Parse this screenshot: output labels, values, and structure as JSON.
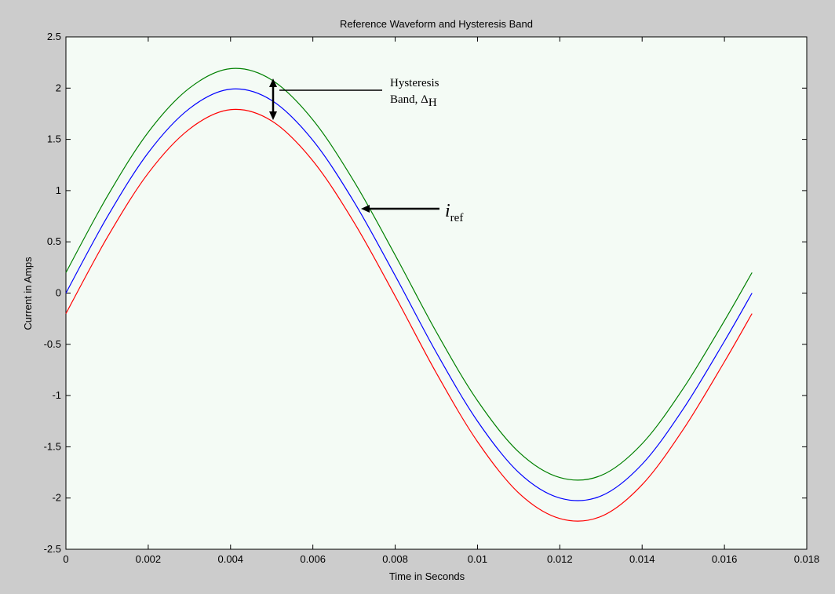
{
  "chart_data": {
    "type": "line",
    "title": "Reference Waveform and Hysteresis Band",
    "xlabel": "Time in Seconds",
    "ylabel": "Current in Amps",
    "xlim": [
      0,
      0.018
    ],
    "ylim": [
      -2.5,
      2.5
    ],
    "xticks": [
      "0",
      "0.002",
      "0.004",
      "0.006",
      "0.008",
      "0.01",
      "0.012",
      "0.014",
      "0.016",
      "0.018"
    ],
    "xtick_values": [
      0,
      0.002,
      0.004,
      0.006,
      0.008,
      0.01,
      0.012,
      0.014,
      0.016,
      0.018
    ],
    "yticks": [
      "2.5",
      "2",
      "1.5",
      "1",
      "0.5",
      "0",
      "-0.5",
      "-1",
      "-1.5",
      "-2",
      "-2.5"
    ],
    "ytick_values": [
      2.5,
      2,
      1.5,
      1,
      0.5,
      0,
      -0.5,
      -1,
      -1.5,
      -2,
      -2.5
    ],
    "grid": false,
    "series": [
      {
        "color": "#008000",
        "x": [
          0,
          0.001,
          0.002,
          0.003,
          0.004,
          0.005,
          0.006,
          0.007,
          0.008,
          0.009,
          0.01,
          0.011,
          0.012,
          0.013,
          0.014,
          0.015,
          0.016,
          0.01667
        ],
        "y": [
          0.2,
          0.94,
          1.57,
          2.0,
          2.19,
          2.08,
          1.69,
          1.09,
          0.37,
          -0.38,
          -1.05,
          -1.55,
          -1.8,
          -1.78,
          -1.47,
          -0.93,
          -0.27,
          0.2
        ]
      },
      {
        "color": "#0000ff",
        "x": [
          0,
          0.001,
          0.002,
          0.003,
          0.004,
          0.005,
          0.006,
          0.007,
          0.008,
          0.009,
          0.01,
          0.011,
          0.012,
          0.013,
          0.014,
          0.015,
          0.016,
          0.01667
        ],
        "y": [
          0.0,
          0.74,
          1.37,
          1.8,
          1.99,
          1.88,
          1.49,
          0.89,
          0.17,
          -0.58,
          -1.25,
          -1.75,
          -2.0,
          -1.98,
          -1.67,
          -1.13,
          -0.47,
          0.0
        ]
      },
      {
        "color": "#ff0000",
        "x": [
          0,
          0.001,
          0.002,
          0.003,
          0.004,
          0.005,
          0.006,
          0.007,
          0.008,
          0.009,
          0.01,
          0.011,
          0.012,
          0.013,
          0.014,
          0.015,
          0.016,
          0.01667
        ],
        "y": [
          -0.2,
          0.54,
          1.17,
          1.6,
          1.79,
          1.68,
          1.29,
          0.69,
          -0.03,
          -0.78,
          -1.45,
          -1.95,
          -2.2,
          -2.18,
          -1.87,
          -1.33,
          -0.67,
          -0.2
        ]
      }
    ],
    "annotations": {
      "band_line1": "Hysteresis",
      "band_line2": "Band, Δ",
      "band_sub": "H",
      "iref_main": "i",
      "iref_sub": "ref"
    }
  }
}
